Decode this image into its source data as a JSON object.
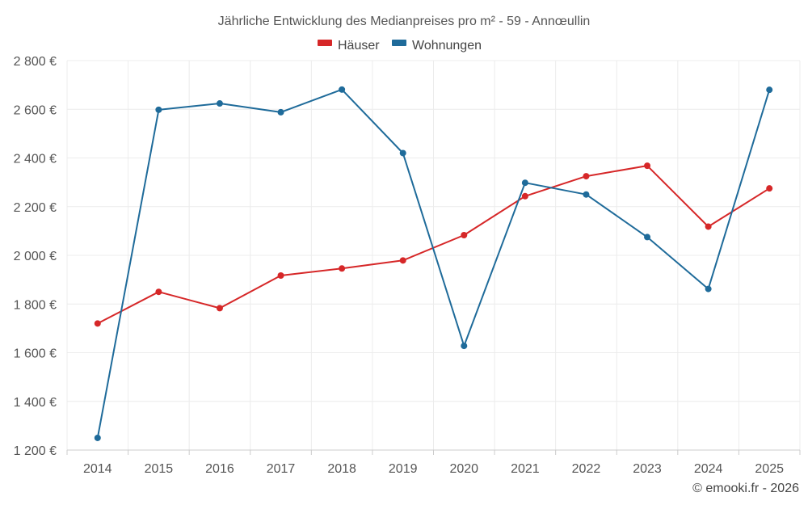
{
  "chart_data": {
    "type": "line",
    "title": "Jährliche Entwicklung des Medianpreises pro m² - 59 - Annœullin",
    "x": [
      "2014",
      "2015",
      "2016",
      "2017",
      "2018",
      "2019",
      "2020",
      "2021",
      "2022",
      "2023",
      "2024",
      "2025"
    ],
    "series": [
      {
        "name": "Häuser",
        "color": "#d62728",
        "values": [
          1720,
          1850,
          1783,
          1917,
          1946,
          1979,
          2083,
          2243,
          2325,
          2368,
          2118,
          2275
        ]
      },
      {
        "name": "Wohnungen",
        "color": "#1f6b9a",
        "values": [
          1250,
          2598,
          2624,
          2588,
          2681,
          2420,
          1628,
          2298,
          2250,
          2075,
          1862,
          2680
        ]
      }
    ],
    "ylim": [
      1200,
      2800
    ],
    "yticks": [
      1200,
      1400,
      1600,
      1800,
      2000,
      2200,
      2400,
      2600,
      2800
    ],
    "ytick_labels": [
      "1 200 €",
      "1 400 €",
      "1 600 €",
      "1 800 €",
      "2 000 €",
      "2 200 €",
      "2 400 €",
      "2 600 €",
      "2 800 €"
    ],
    "legend_position": "top-center",
    "grid": true,
    "credit": "© emooki.fr - 2026"
  }
}
